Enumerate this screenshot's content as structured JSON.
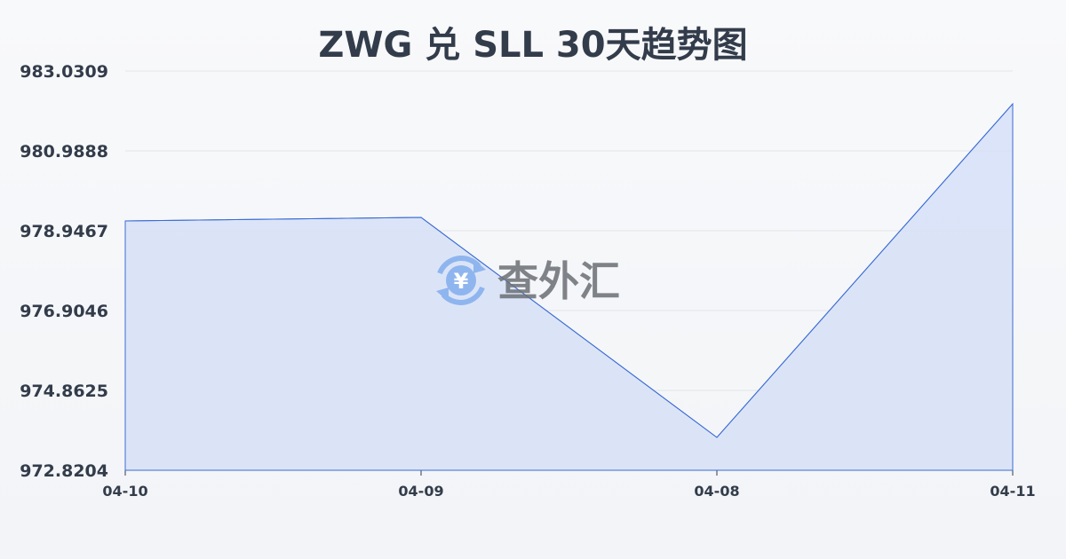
{
  "chart_data": {
    "type": "area",
    "title": "ZWG 兑 SLL 30天趋势图",
    "categories": [
      "04-10",
      "04-09",
      "04-08",
      "04-11"
    ],
    "values": [
      979.196,
      979.287,
      973.66,
      982.19
    ],
    "yticks": [
      "983.0309",
      "980.9888",
      "978.9467",
      "976.9046",
      "974.8625",
      "972.8204"
    ],
    "ylim": [
      972.8204,
      983.0309
    ],
    "grid": true,
    "line_color": "#3b6cd4",
    "fill_color": "#d6e1f7"
  },
  "watermark": {
    "text": "查外汇",
    "icon": "yen-exchange-icon"
  }
}
